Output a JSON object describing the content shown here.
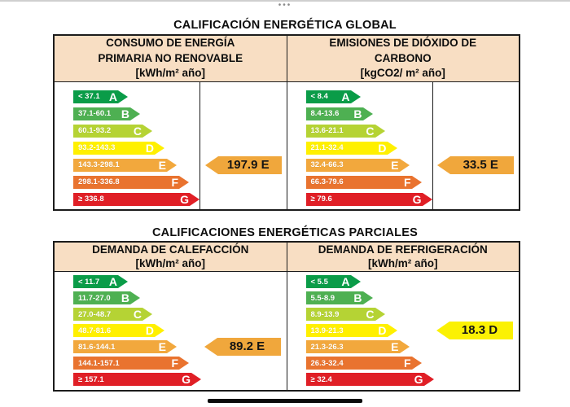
{
  "icons": {
    "window_drag_handle": "•••"
  },
  "global_section": {
    "title": "CALIFICACIÓN ENERGÉTICA GLOBAL",
    "columns": [
      {
        "header_lines": [
          "CONSUMO DE ENERGÍA",
          "PRIMARIA NO RENOVABLE",
          "[kWh/m² año]"
        ],
        "scale": [
          {
            "letter": "A",
            "range": "< 37.1",
            "color": "#0A9C48"
          },
          {
            "letter": "B",
            "range": "37.1-60.1",
            "color": "#4EB052"
          },
          {
            "letter": "C",
            "range": "60.1-93.2",
            "color": "#B5D334"
          },
          {
            "letter": "D",
            "range": "93.2-143.3",
            "color": "#FFF000"
          },
          {
            "letter": "E",
            "range": "143.3-298.1",
            "color": "#F2A83D"
          },
          {
            "letter": "F",
            "range": "298.1-336.8",
            "color": "#E9732F"
          },
          {
            "letter": "G",
            "range": "≥ 336.8",
            "color": "#E01F26"
          }
        ],
        "rating": {
          "value": "197.9 E",
          "letter": "E",
          "color": "#F0A73C"
        }
      },
      {
        "header_lines": [
          "EMISIONES DE DIÓXIDO DE",
          "CARBONO",
          "[kgCO2/ m² año]"
        ],
        "scale": [
          {
            "letter": "A",
            "range": "< 8.4",
            "color": "#0A9C48"
          },
          {
            "letter": "B",
            "range": "8.4-13.6",
            "color": "#4EB052"
          },
          {
            "letter": "C",
            "range": "13.6-21.1",
            "color": "#B5D334"
          },
          {
            "letter": "D",
            "range": "21.1-32.4",
            "color": "#FFF000"
          },
          {
            "letter": "E",
            "range": "32.4-66.3",
            "color": "#F2A83D"
          },
          {
            "letter": "F",
            "range": "66.3-79.6",
            "color": "#E9732F"
          },
          {
            "letter": "G",
            "range": "≥ 79.6",
            "color": "#E01F26"
          }
        ],
        "rating": {
          "value": "33.5 E",
          "letter": "E",
          "color": "#F0A73C"
        }
      }
    ]
  },
  "partial_section": {
    "title": "CALIFICACIONES ENERGÉTICAS PARCIALES",
    "columns": [
      {
        "header_lines": [
          "DEMANDA DE CALEFACCIÓN",
          "[kWh/m² año]"
        ],
        "scale": [
          {
            "letter": "A",
            "range": "< 11.7",
            "color": "#0A9C48"
          },
          {
            "letter": "B",
            "range": "11.7-27.0",
            "color": "#4EB052"
          },
          {
            "letter": "C",
            "range": "27.0-48.7",
            "color": "#B5D334"
          },
          {
            "letter": "D",
            "range": "48.7-81.6",
            "color": "#FFF000"
          },
          {
            "letter": "E",
            "range": "81.6-144.1",
            "color": "#F2A83D"
          },
          {
            "letter": "F",
            "range": "144.1-157.1",
            "color": "#E9732F"
          },
          {
            "letter": "G",
            "range": "≥ 157.1",
            "color": "#E01F26"
          }
        ],
        "rating": {
          "value": "89.2 E",
          "letter": "E",
          "color": "#F0A73C"
        }
      },
      {
        "header_lines": [
          "DEMANDA DE REFRIGERACIÓN",
          "[kWh/m² año]"
        ],
        "scale": [
          {
            "letter": "A",
            "range": "< 5.5",
            "color": "#0A9C48"
          },
          {
            "letter": "B",
            "range": "5.5-8.9",
            "color": "#4EB052"
          },
          {
            "letter": "C",
            "range": "8.9-13.9",
            "color": "#B5D334"
          },
          {
            "letter": "D",
            "range": "13.9-21.3",
            "color": "#FFF000"
          },
          {
            "letter": "E",
            "range": "21.3-26.3",
            "color": "#F2A83D"
          },
          {
            "letter": "F",
            "range": "26.3-32.4",
            "color": "#E9732F"
          },
          {
            "letter": "G",
            "range": "≥ 32.4",
            "color": "#E01F26"
          }
        ],
        "rating": {
          "value": "18.3 D",
          "letter": "D",
          "color": "#FBF103"
        }
      }
    ]
  }
}
